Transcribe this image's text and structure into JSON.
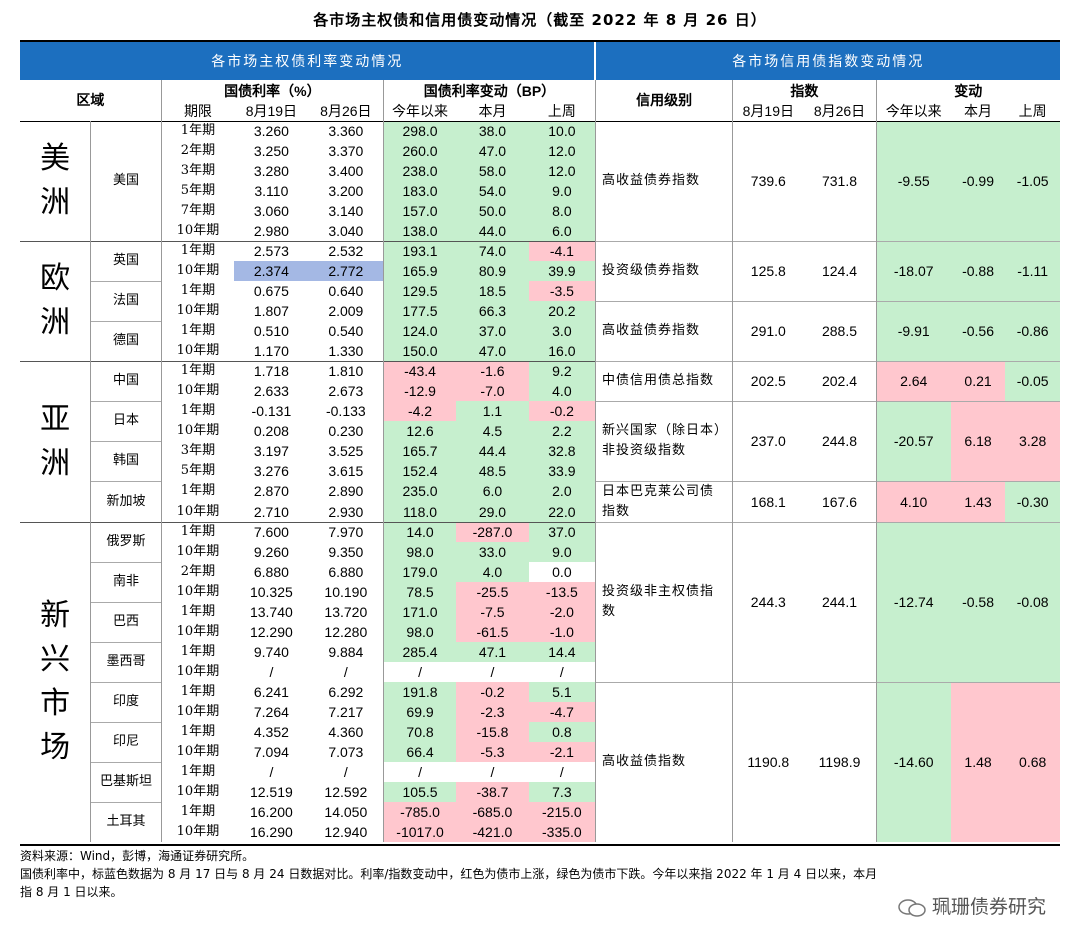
{
  "title": "各市场主权债和信用债变动情况（截至 2022 年 8 月 26 日）",
  "left_section_title": "各市场主权债利率变动情况",
  "right_section_title": "各市场信用债指数变动情况",
  "headers": {
    "region": "区域",
    "yield": "国债利率（%）",
    "yield_change": "国债利率变动（BP）",
    "credit_grade": "信用级别",
    "index": "指数",
    "change": "变动",
    "period": "期限",
    "date1": "8月19日",
    "date2": "8月26日",
    "ytd": "今年以来",
    "mtd": "本月",
    "wk": "上周"
  },
  "regions": [
    {
      "label": "美洲",
      "countries": [
        {
          "name": "美国",
          "rows": [
            {
              "period": "1年期",
              "v1": "3.260",
              "v2": "3.360",
              "ytd": "298.0",
              "mtd": "38.0",
              "wk": "10.0",
              "c": [
                "g",
                "g",
                "g"
              ]
            },
            {
              "period": "2年期",
              "v1": "3.250",
              "v2": "3.370",
              "ytd": "260.0",
              "mtd": "47.0",
              "wk": "12.0",
              "c": [
                "g",
                "g",
                "g"
              ]
            },
            {
              "period": "3年期",
              "v1": "3.280",
              "v2": "3.400",
              "ytd": "238.0",
              "mtd": "58.0",
              "wk": "12.0",
              "c": [
                "g",
                "g",
                "g"
              ]
            },
            {
              "period": "5年期",
              "v1": "3.110",
              "v2": "3.200",
              "ytd": "183.0",
              "mtd": "54.0",
              "wk": "9.0",
              "c": [
                "g",
                "g",
                "g"
              ]
            },
            {
              "period": "7年期",
              "v1": "3.060",
              "v2": "3.140",
              "ytd": "157.0",
              "mtd": "50.0",
              "wk": "8.0",
              "c": [
                "g",
                "g",
                "g"
              ]
            },
            {
              "period": "10年期",
              "v1": "2.980",
              "v2": "3.040",
              "ytd": "138.0",
              "mtd": "44.0",
              "wk": "6.0",
              "c": [
                "g",
                "g",
                "g"
              ]
            }
          ]
        }
      ]
    },
    {
      "label": "欧洲",
      "countries": [
        {
          "name": "英国",
          "rows": [
            {
              "period": "1年期",
              "v1": "2.573",
              "v2": "2.532",
              "ytd": "193.1",
              "mtd": "74.0",
              "wk": "-4.1",
              "c": [
                "g",
                "g",
                "r"
              ]
            },
            {
              "period": "10年期",
              "v1": "2.374",
              "v2": "2.772",
              "ytd": "165.9",
              "mtd": "80.9",
              "wk": "39.9",
              "c": [
                "g",
                "g",
                "g"
              ],
              "blue": true
            }
          ]
        },
        {
          "name": "法国",
          "rows": [
            {
              "period": "1年期",
              "v1": "0.675",
              "v2": "0.640",
              "ytd": "129.5",
              "mtd": "18.5",
              "wk": "-3.5",
              "c": [
                "g",
                "g",
                "r"
              ]
            },
            {
              "period": "10年期",
              "v1": "1.807",
              "v2": "2.009",
              "ytd": "177.5",
              "mtd": "66.3",
              "wk": "20.2",
              "c": [
                "g",
                "g",
                "g"
              ]
            }
          ]
        },
        {
          "name": "德国",
          "rows": [
            {
              "period": "1年期",
              "v1": "0.510",
              "v2": "0.540",
              "ytd": "124.0",
              "mtd": "37.0",
              "wk": "3.0",
              "c": [
                "g",
                "g",
                "g"
              ]
            },
            {
              "period": "10年期",
              "v1": "1.170",
              "v2": "1.330",
              "ytd": "150.0",
              "mtd": "47.0",
              "wk": "16.0",
              "c": [
                "g",
                "g",
                "g"
              ]
            }
          ]
        }
      ]
    },
    {
      "label": "亚洲",
      "countries": [
        {
          "name": "中国",
          "rows": [
            {
              "period": "1年期",
              "v1": "1.718",
              "v2": "1.810",
              "ytd": "-43.4",
              "mtd": "-1.6",
              "wk": "9.2",
              "c": [
                "r",
                "r",
                "g"
              ]
            },
            {
              "period": "10年期",
              "v1": "2.633",
              "v2": "2.673",
              "ytd": "-12.9",
              "mtd": "-7.0",
              "wk": "4.0",
              "c": [
                "r",
                "r",
                "g"
              ]
            }
          ]
        },
        {
          "name": "日本",
          "rows": [
            {
              "period": "1年期",
              "v1": "-0.131",
              "v2": "-0.133",
              "ytd": "-4.2",
              "mtd": "1.1",
              "wk": "-0.2",
              "c": [
                "r",
                "g",
                "r"
              ]
            },
            {
              "period": "10年期",
              "v1": "0.208",
              "v2": "0.230",
              "ytd": "12.6",
              "mtd": "4.5",
              "wk": "2.2",
              "c": [
                "g",
                "g",
                "g"
              ]
            }
          ]
        },
        {
          "name": "韩国",
          "rows": [
            {
              "period": "3年期",
              "v1": "3.197",
              "v2": "3.525",
              "ytd": "165.7",
              "mtd": "44.4",
              "wk": "32.8",
              "c": [
                "g",
                "g",
                "g"
              ]
            },
            {
              "period": "5年期",
              "v1": "3.276",
              "v2": "3.615",
              "ytd": "152.4",
              "mtd": "48.5",
              "wk": "33.9",
              "c": [
                "g",
                "g",
                "g"
              ]
            }
          ]
        },
        {
          "name": "新加坡",
          "rows": [
            {
              "period": "1年期",
              "v1": "2.870",
              "v2": "2.890",
              "ytd": "235.0",
              "mtd": "6.0",
              "wk": "2.0",
              "c": [
                "g",
                "g",
                "g"
              ]
            },
            {
              "period": "10年期",
              "v1": "2.710",
              "v2": "2.930",
              "ytd": "118.0",
              "mtd": "29.0",
              "wk": "22.0",
              "c": [
                "g",
                "g",
                "g"
              ]
            }
          ]
        }
      ]
    },
    {
      "label": "新兴市场",
      "countries": [
        {
          "name": "俄罗斯",
          "rows": [
            {
              "period": "1年期",
              "v1": "7.600",
              "v2": "7.970",
              "ytd": "14.0",
              "mtd": "-287.0",
              "wk": "37.0",
              "c": [
                "g",
                "r",
                "g"
              ]
            },
            {
              "period": "10年期",
              "v1": "9.260",
              "v2": "9.350",
              "ytd": "98.0",
              "mtd": "33.0",
              "wk": "9.0",
              "c": [
                "g",
                "g",
                "g"
              ]
            }
          ]
        },
        {
          "name": "南非",
          "rows": [
            {
              "period": "2年期",
              "v1": "6.880",
              "v2": "6.880",
              "ytd": "179.0",
              "mtd": "4.0",
              "wk": "0.0",
              "c": [
                "g",
                "g",
                "w"
              ]
            },
            {
              "period": "10年期",
              "v1": "10.325",
              "v2": "10.190",
              "ytd": "78.5",
              "mtd": "-25.5",
              "wk": "-13.5",
              "c": [
                "g",
                "r",
                "r"
              ]
            }
          ]
        },
        {
          "name": "巴西",
          "rows": [
            {
              "period": "1年期",
              "v1": "13.740",
              "v2": "13.720",
              "ytd": "171.0",
              "mtd": "-7.5",
              "wk": "-2.0",
              "c": [
                "g",
                "r",
                "r"
              ]
            },
            {
              "period": "10年期",
              "v1": "12.290",
              "v2": "12.280",
              "ytd": "98.0",
              "mtd": "-61.5",
              "wk": "-1.0",
              "c": [
                "g",
                "r",
                "r"
              ]
            }
          ]
        },
        {
          "name": "墨西哥",
          "rows": [
            {
              "period": "1年期",
              "v1": "9.740",
              "v2": "9.884",
              "ytd": "285.4",
              "mtd": "47.1",
              "wk": "14.4",
              "c": [
                "g",
                "g",
                "g"
              ]
            },
            {
              "period": "10年期",
              "v1": "/",
              "v2": "/",
              "ytd": "/",
              "mtd": "/",
              "wk": "/",
              "c": [
                "w",
                "w",
                "w"
              ]
            }
          ]
        },
        {
          "name": "印度",
          "rows": [
            {
              "period": "1年期",
              "v1": "6.241",
              "v2": "6.292",
              "ytd": "191.8",
              "mtd": "-0.2",
              "wk": "5.1",
              "c": [
                "g",
                "r",
                "g"
              ]
            },
            {
              "period": "10年期",
              "v1": "7.264",
              "v2": "7.217",
              "ytd": "69.9",
              "mtd": "-2.3",
              "wk": "-4.7",
              "c": [
                "g",
                "r",
                "r"
              ]
            }
          ]
        },
        {
          "name": "印尼",
          "rows": [
            {
              "period": "1年期",
              "v1": "4.352",
              "v2": "4.360",
              "ytd": "70.8",
              "mtd": "-15.8",
              "wk": "0.8",
              "c": [
                "g",
                "r",
                "g"
              ]
            },
            {
              "period": "10年期",
              "v1": "7.094",
              "v2": "7.073",
              "ytd": "66.4",
              "mtd": "-5.3",
              "wk": "-2.1",
              "c": [
                "g",
                "r",
                "r"
              ]
            }
          ]
        },
        {
          "name": "巴基斯坦",
          "rows": [
            {
              "period": "1年期",
              "v1": "/",
              "v2": "/",
              "ytd": "/",
              "mtd": "/",
              "wk": "/",
              "c": [
                "w",
                "w",
                "w"
              ]
            },
            {
              "period": "10年期",
              "v1": "12.519",
              "v2": "12.592",
              "ytd": "105.5",
              "mtd": "-38.7",
              "wk": "7.3",
              "c": [
                "g",
                "r",
                "g"
              ]
            }
          ]
        },
        {
          "name": "土耳其",
          "rows": [
            {
              "period": "1年期",
              "v1": "16.200",
              "v2": "14.050",
              "ytd": "-785.0",
              "mtd": "-685.0",
              "wk": "-215.0",
              "c": [
                "r",
                "r",
                "r"
              ]
            },
            {
              "period": "10年期",
              "v1": "16.290",
              "v2": "12.940",
              "ytd": "-1017.0",
              "mtd": "-421.0",
              "wk": "-335.0",
              "c": [
                "r",
                "r",
                "r"
              ]
            }
          ]
        }
      ]
    }
  ],
  "credit": [
    {
      "grade": "高收益债券指数",
      "start": 0,
      "span": 6,
      "i1": "739.6",
      "i2": "731.8",
      "ytd": "-9.55",
      "mtd": "-0.99",
      "wk": "-1.05",
      "c": [
        "g",
        "g",
        "g"
      ]
    },
    {
      "grade": "投资级债券指数",
      "start": 6,
      "span": 3,
      "i1": "125.8",
      "i2": "124.4",
      "ytd": "-18.07",
      "mtd": "-0.88",
      "wk": "-1.11",
      "c": [
        "g",
        "g",
        "g"
      ]
    },
    {
      "grade": "高收益债券指数",
      "start": 9,
      "span": 3,
      "i1": "291.0",
      "i2": "288.5",
      "ytd": "-9.91",
      "mtd": "-0.56",
      "wk": "-0.86",
      "c": [
        "g",
        "g",
        "g"
      ]
    },
    {
      "grade": "中债信用债总指数",
      "start": 12,
      "span": 2,
      "i1": "202.5",
      "i2": "202.4",
      "ytd": "2.64",
      "mtd": "0.21",
      "wk": "-0.05",
      "c": [
        "r",
        "r",
        "g"
      ]
    },
    {
      "grade": "新兴国家（除日本）非投资级指数",
      "start": 14,
      "span": 4,
      "i1": "237.0",
      "i2": "244.8",
      "ytd": "-20.57",
      "mtd": "6.18",
      "wk": "3.28",
      "c": [
        "g",
        "r",
        "r"
      ]
    },
    {
      "grade": "日本巴克莱公司债指数",
      "start": 18,
      "span": 2,
      "i1": "168.1",
      "i2": "167.6",
      "ytd": "4.10",
      "mtd": "1.43",
      "wk": "-0.30",
      "c": [
        "r",
        "r",
        "g"
      ]
    },
    {
      "grade": "投资级非主权债指数",
      "start": 20,
      "span": 8,
      "i1": "244.3",
      "i2": "244.1",
      "ytd": "-12.74",
      "mtd": "-0.58",
      "wk": "-0.08",
      "c": [
        "g",
        "g",
        "g"
      ]
    },
    {
      "grade": "高收益债指数",
      "start": 28,
      "span": 8,
      "i1": "1190.8",
      "i2": "1198.9",
      "ytd": "-14.60",
      "mtd": "1.48",
      "wk": "0.68",
      "c": [
        "g",
        "r",
        "r"
      ]
    }
  ],
  "footer": {
    "line1": "资料来源：Wind，彭博，海通证券研究所。",
    "line2": "国债利率中，标蓝色数据为 8 月 17 日与 8 月 24 日数据对比。利率/指数变动中，红色为债市上涨，绿色为债市下跌。今年以来指 2022 年 1 月 4 日以来，本月",
    "line3": "指 8 月 1 日以来。"
  },
  "watermark": "珮珊债券研究",
  "colors": {
    "band": "#1c6fbf",
    "up_green": "#c6efce",
    "down_red": "#ffc7ce",
    "highlight_blue": "#a4b8e4"
  }
}
